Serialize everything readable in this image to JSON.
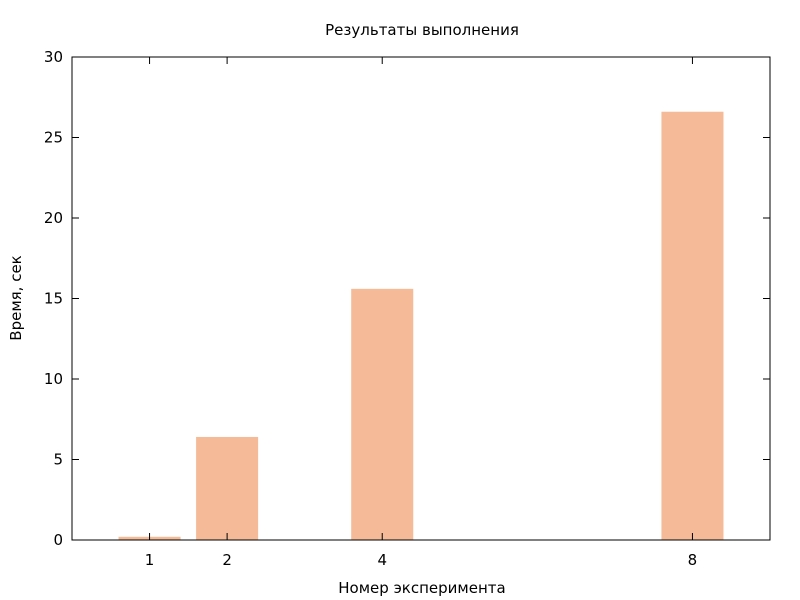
{
  "chart_data": {
    "type": "bar",
    "title": "Результаты выполнения",
    "xlabel": "Номер эксперимента",
    "ylabel": "Время, сек",
    "x": [
      1,
      2,
      4,
      8
    ],
    "x_tick_labels": [
      "1",
      "2",
      "4",
      "8"
    ],
    "values": [
      0.2,
      6.4,
      15.6,
      26.6
    ],
    "xlim": [
      0.0,
      9.0
    ],
    "ylim": [
      0,
      30
    ],
    "y_ticks": [
      0,
      5,
      10,
      15,
      20,
      25,
      30
    ],
    "y_tick_labels": [
      "0",
      "5",
      "10",
      "15",
      "20",
      "25",
      "30"
    ],
    "bar_width": 0.8,
    "bar_color": "#f5bb98",
    "grid": false,
    "legend": "none"
  }
}
